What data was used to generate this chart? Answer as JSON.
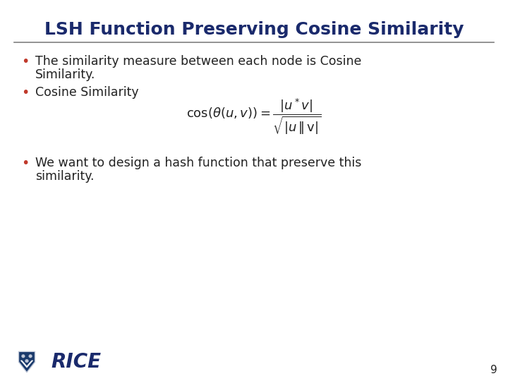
{
  "title": "LSH Function Preserving Cosine Similarity",
  "title_color": "#1a2a6c",
  "title_fontsize": 18,
  "background_color": "#ffffff",
  "separator_color": "#808080",
  "bullet_color": "#c0392b",
  "text_color": "#222222",
  "bullet1_line1": "The similarity measure between each node is Cosine",
  "bullet1_line2": "Similarity.",
  "bullet2": "Cosine Similarity",
  "bullet3_line1": "We want to design a hash function that preserve this",
  "bullet3_line2": "similarity.",
  "page_number": "9",
  "rice_text": "RICE",
  "rice_color": "#1a2a6c",
  "formula": "$\\cos(\\theta(u,v)) = \\dfrac{|u^*v|}{\\sqrt{|u\\,\\|\\,\\mathrm{v}|}}$",
  "formula_fontsize": 13
}
